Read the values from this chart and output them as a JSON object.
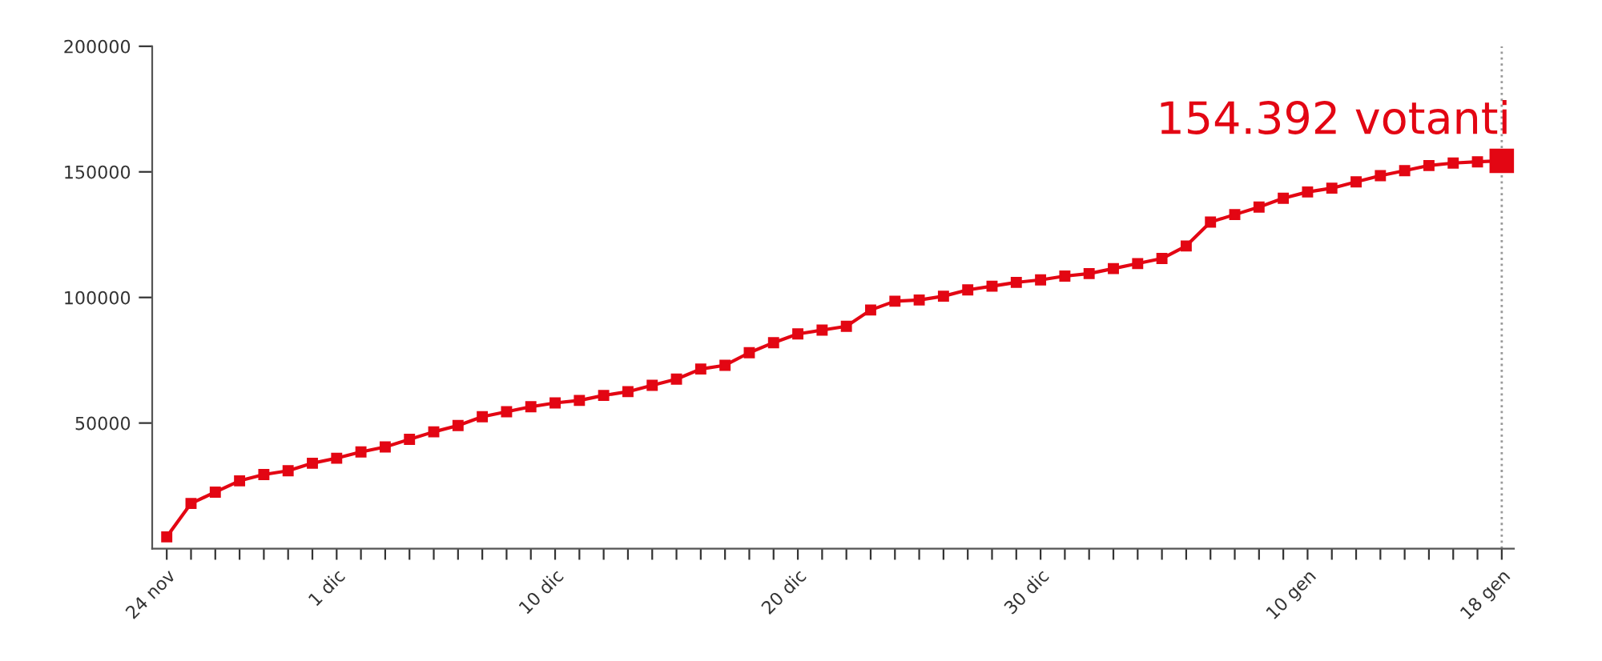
{
  "chart_data": {
    "type": "line",
    "categories": [
      "24 nov",
      null,
      null,
      null,
      null,
      null,
      null,
      "1 dic",
      null,
      null,
      null,
      null,
      null,
      null,
      null,
      null,
      "10 dic",
      null,
      null,
      null,
      null,
      null,
      null,
      null,
      null,
      null,
      "20 dic",
      null,
      null,
      null,
      null,
      null,
      null,
      null,
      null,
      null,
      "30 dic",
      null,
      null,
      null,
      null,
      null,
      null,
      null,
      null,
      null,
      null,
      "10 gen",
      null,
      null,
      null,
      null,
      null,
      null,
      null,
      "18 gen"
    ],
    "series": [
      {
        "color": "#e30613",
        "values": [
          4700,
          18000,
          22500,
          27000,
          29500,
          31000,
          34000,
          36000,
          38500,
          40500,
          43500,
          46500,
          49000,
          52500,
          54500,
          56500,
          58000,
          59000,
          61000,
          62500,
          65000,
          67500,
          71500,
          73000,
          78000,
          82000,
          85500,
          87000,
          88500,
          95000,
          98500,
          99000,
          100500,
          103000,
          104500,
          106000,
          107000,
          108500,
          109500,
          111500,
          113500,
          115500,
          120500,
          130000,
          133000,
          136000,
          139500,
          142000,
          143500,
          146000,
          148500,
          150500,
          152500,
          153500,
          154000,
          154392
        ]
      }
    ],
    "marker": "square",
    "line_style": "solid",
    "ylim": [
      0,
      200000
    ],
    "yticks": [
      50000,
      100000,
      150000,
      200000
    ],
    "ref_lines": [
      {
        "axis": "x",
        "value": "18 gen",
        "label": null,
        "color": "#999999",
        "line_style": "dotted"
      }
    ],
    "annotations": [
      {
        "text": "154.392 votanti",
        "x": "18 gen",
        "y": 154392
      }
    ]
  }
}
